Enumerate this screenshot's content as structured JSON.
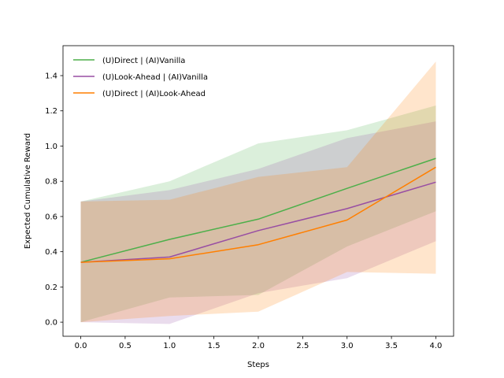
{
  "chart_data": {
    "type": "line",
    "title": "",
    "xlabel": "Steps",
    "ylabel": "Expected Cumulative Reward",
    "xlim": [
      -0.2,
      4.2
    ],
    "ylim": [
      -0.08,
      1.57
    ],
    "xticks": [
      0.0,
      0.5,
      1.0,
      1.5,
      2.0,
      2.5,
      3.0,
      3.5,
      4.0
    ],
    "xtick_labels": [
      "0.0",
      "0.5",
      "1.0",
      "1.5",
      "2.0",
      "2.5",
      "3.0",
      "3.5",
      "4.0"
    ],
    "yticks": [
      0.0,
      0.2,
      0.4,
      0.6,
      0.8,
      1.0,
      1.2,
      1.4
    ],
    "ytick_labels": [
      "0.0",
      "0.2",
      "0.4",
      "0.6",
      "0.8",
      "1.0",
      "1.2",
      "1.4"
    ],
    "grid": false,
    "legend_position": "top-left",
    "x": [
      0,
      1,
      2,
      3,
      4
    ],
    "series": [
      {
        "name": "(U)Direct | (AI)Vanilla",
        "color": "#4daf4a",
        "values": [
          0.34,
          0.47,
          0.585,
          0.76,
          0.93
        ],
        "lower": [
          0.0,
          0.14,
          0.155,
          0.43,
          0.63
        ],
        "upper": [
          0.685,
          0.8,
          1.015,
          1.09,
          1.23
        ]
      },
      {
        "name": "(U)Look-Ahead | (AI)Vanilla",
        "color": "#984ea3",
        "values": [
          0.34,
          0.37,
          0.52,
          0.645,
          0.795
        ],
        "lower": [
          0.0,
          -0.01,
          0.165,
          0.25,
          0.46
        ],
        "upper": [
          0.685,
          0.75,
          0.87,
          1.045,
          1.14
        ]
      },
      {
        "name": "(U)Direct | (AI)Look-Ahead",
        "color": "#ff7f00",
        "values": [
          0.34,
          0.36,
          0.44,
          0.58,
          0.88
        ],
        "lower": [
          0.0,
          0.035,
          0.06,
          0.285,
          0.275
        ],
        "upper": [
          0.685,
          0.695,
          0.825,
          0.88,
          1.48
        ]
      }
    ]
  }
}
